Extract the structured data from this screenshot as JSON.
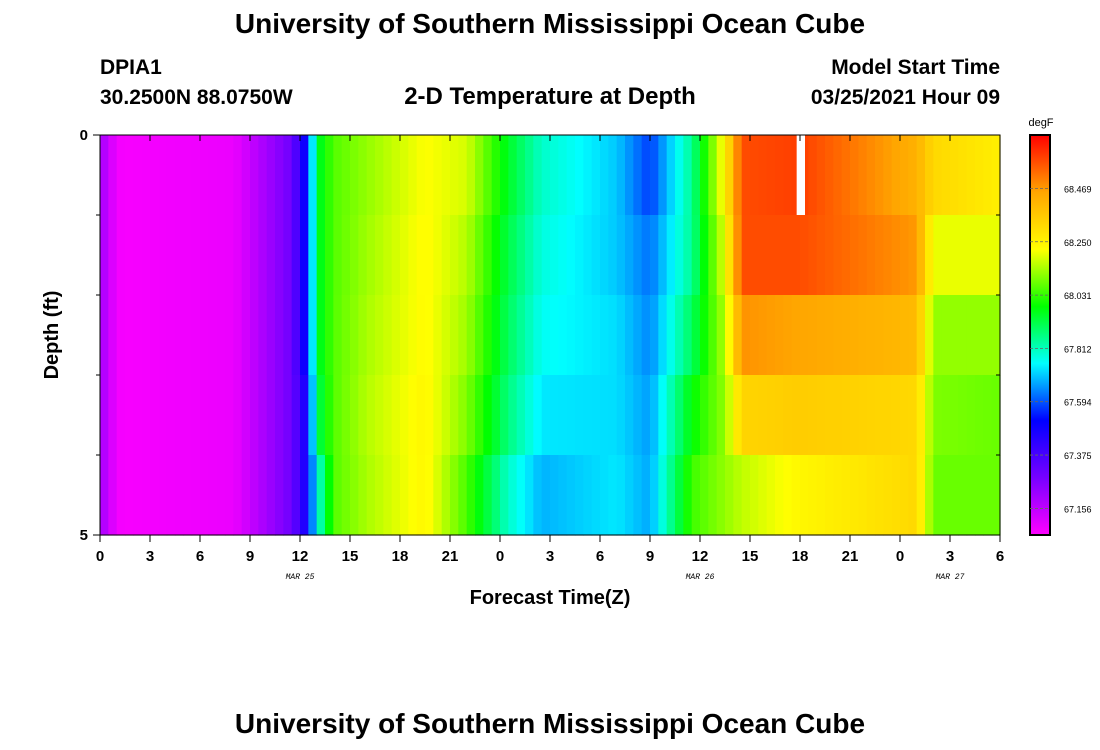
{
  "header": {
    "title": "University of Southern Mississippi Ocean Cube",
    "station": "DPIA1",
    "coords": "30.2500N 88.0750W",
    "subtitle": "2-D Temperature at Depth",
    "model_start_label": "Model Start Time",
    "model_start_value": "03/25/2021 Hour 09"
  },
  "footer": {
    "title": "University of Southern Mississippi Ocean Cube"
  },
  "chart_data": {
    "type": "heatmap",
    "title": "2-D Temperature at Depth",
    "xlabel": "Forecast Time(Z)",
    "ylabel": "Depth (ft)",
    "x_hours": [
      0,
      54
    ],
    "xlim_hours": [
      0,
      54
    ],
    "ylim": [
      0,
      5
    ],
    "x_ticks": [
      {
        "hour": 0,
        "label": "0"
      },
      {
        "hour": 3,
        "label": "3"
      },
      {
        "hour": 6,
        "label": "6"
      },
      {
        "hour": 9,
        "label": "9"
      },
      {
        "hour": 12,
        "label": "12"
      },
      {
        "hour": 15,
        "label": "15"
      },
      {
        "hour": 18,
        "label": "18"
      },
      {
        "hour": 21,
        "label": "21"
      },
      {
        "hour": 24,
        "label": "0"
      },
      {
        "hour": 27,
        "label": "3"
      },
      {
        "hour": 30,
        "label": "6"
      },
      {
        "hour": 33,
        "label": "9"
      },
      {
        "hour": 36,
        "label": "12"
      },
      {
        "hour": 39,
        "label": "15"
      },
      {
        "hour": 42,
        "label": "18"
      },
      {
        "hour": 45,
        "label": "21"
      },
      {
        "hour": 48,
        "label": "0"
      },
      {
        "hour": 51,
        "label": "3"
      },
      {
        "hour": 54,
        "label": "6"
      }
    ],
    "date_labels": [
      {
        "hour": 12,
        "label": "MAR 25"
      },
      {
        "hour": 36,
        "label": "MAR 26"
      },
      {
        "hour": 51,
        "label": "MAR 27"
      }
    ],
    "y_tick_labels": [
      {
        "depth": 0,
        "label": "0"
      },
      {
        "depth": 5,
        "label": "5"
      }
    ],
    "y_minor_ticks": [
      1,
      2,
      3,
      4
    ],
    "depth_levels": [
      0,
      1,
      2,
      3,
      4,
      5
    ],
    "colorbar": {
      "unit": "degF",
      "min": 67.047,
      "max": 68.688,
      "tick_labels": [
        "68.469",
        "68.250",
        "68.031",
        "67.812",
        "67.594",
        "67.375",
        "67.156"
      ],
      "tick_values": [
        68.469,
        68.25,
        68.031,
        67.812,
        67.594,
        67.375,
        67.156
      ],
      "stops": [
        "#ff00ff",
        "#7700ff",
        "#0000ff",
        "#00ffff",
        "#00ff00",
        "#ffff00",
        "#ffa500",
        "#ff0000"
      ]
    },
    "temp_keyframes": [
      {
        "hour": 0,
        "layers": [
          67.22,
          67.22,
          67.22,
          67.22,
          67.22
        ]
      },
      {
        "hour": 0.5,
        "layers": [
          67.13,
          67.13,
          67.13,
          67.13,
          67.13
        ]
      },
      {
        "hour": 1.3,
        "layers": [
          67.06,
          67.06,
          67.06,
          67.06,
          67.06
        ]
      },
      {
        "hour": 8,
        "layers": [
          67.08,
          67.08,
          67.08,
          67.08,
          67.08
        ]
      },
      {
        "hour": 11.5,
        "layers": [
          67.3,
          67.3,
          67.3,
          67.3,
          67.3
        ]
      },
      {
        "hour": 12.3,
        "layers": [
          67.5,
          67.5,
          67.5,
          67.46,
          67.46
        ]
      },
      {
        "hour": 13.2,
        "layers": [
          67.96,
          67.96,
          67.96,
          67.93,
          67.82
        ]
      },
      {
        "hour": 14,
        "layers": [
          68.06,
          68.06,
          68.06,
          68.06,
          68.06
        ]
      },
      {
        "hour": 16,
        "layers": [
          68.12,
          68.13,
          68.14,
          68.15,
          68.14
        ]
      },
      {
        "hour": 19.5,
        "layers": [
          68.22,
          68.23,
          68.23,
          68.24,
          68.24
        ]
      },
      {
        "hour": 22,
        "layers": [
          68.18,
          68.15,
          68.13,
          68.1,
          68.05
        ]
      },
      {
        "hour": 24.5,
        "layers": [
          67.95,
          67.92,
          67.9,
          67.87,
          67.8
        ]
      },
      {
        "hour": 26.5,
        "layers": [
          67.8,
          67.78,
          67.76,
          67.73,
          67.68
        ]
      },
      {
        "hour": 31,
        "layers": [
          67.7,
          67.7,
          67.72,
          67.72,
          67.73
        ]
      },
      {
        "hour": 33,
        "layers": [
          67.57,
          67.62,
          67.64,
          67.66,
          67.67
        ]
      },
      {
        "hour": 35.5,
        "layers": [
          67.85,
          67.85,
          67.9,
          67.98,
          68.04
        ]
      },
      {
        "hour": 37.5,
        "layers": [
          68.25,
          68.2,
          68.15,
          68.12,
          68.12
        ]
      },
      {
        "hour": 38.5,
        "layers": [
          68.58,
          68.58,
          68.48,
          68.33,
          68.16
        ]
      },
      {
        "hour": 42,
        "layers": [
          68.6,
          68.58,
          68.45,
          68.35,
          68.24
        ]
      },
      {
        "hour": 49,
        "layers": [
          68.42,
          68.47,
          68.4,
          68.32,
          68.32
        ]
      },
      {
        "hour": 50,
        "layers": [
          68.32,
          68.2,
          68.12,
          68.1,
          68.08
        ]
      },
      {
        "hour": 54,
        "layers": [
          68.26,
          68.2,
          68.12,
          68.08,
          68.08
        ]
      }
    ],
    "missing_data": {
      "hour_start": 41.8,
      "hour_end": 42.3,
      "depth_start": 0,
      "depth_end": 1
    }
  }
}
